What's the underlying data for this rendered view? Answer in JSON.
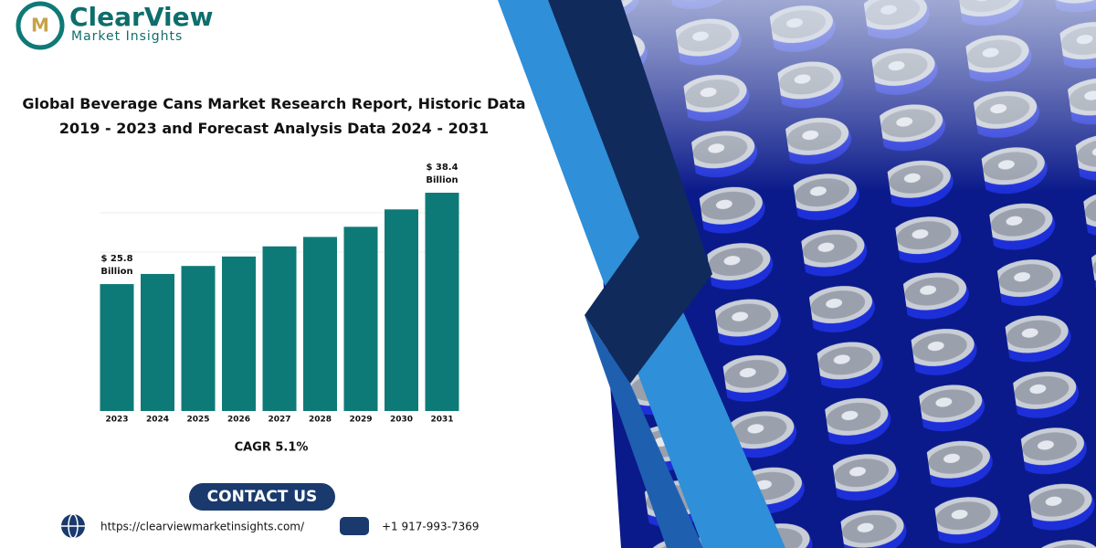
{
  "brand": {
    "name": "ClearView",
    "tagline": "Market Insights"
  },
  "chart_data": {
    "type": "bar",
    "title": "Global Beverage Cans Market Research Report, Historic Data 2019 - 2023 and Forecast Analysis Data 2024 - 2031",
    "categories": [
      "2023",
      "2024",
      "2025",
      "2026",
      "2027",
      "2028",
      "2029",
      "2030",
      "2031"
    ],
    "values": [
      25.8,
      27.2,
      28.3,
      29.6,
      31.0,
      32.3,
      33.7,
      36.1,
      38.4
    ],
    "value_labels": [
      "$ 25.8 Billion",
      null,
      null,
      null,
      null,
      null,
      null,
      null,
      "$ 38.4 Billion"
    ],
    "color": "#0e7a78",
    "ylim": [
      8.3,
      38.4
    ],
    "annotation": "CAGR 5.1%"
  },
  "contact": {
    "button": "CONTACT US",
    "url": "https://clearviewmarketinsights.com/",
    "phone": "+1 917-993-7369"
  }
}
